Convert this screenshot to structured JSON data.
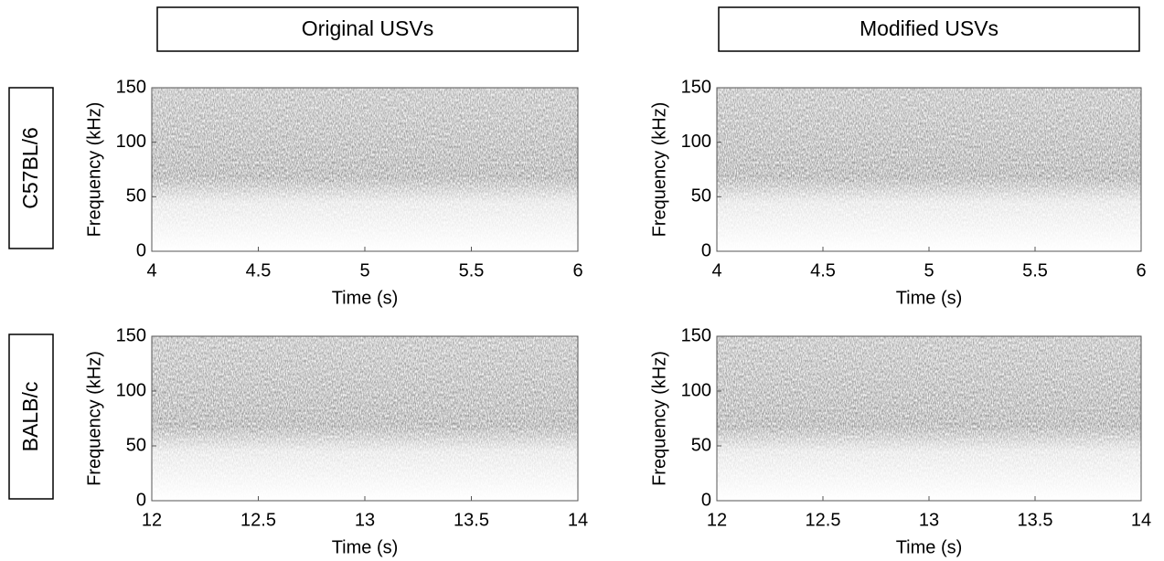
{
  "panel_labels": {
    "columns": [
      "Original USVs",
      "Modified USVs"
    ],
    "rows": [
      "C57BL/6",
      "BALB/c"
    ]
  },
  "chart_data": [
    {
      "type": "spectrogram",
      "xlabel": "Time (s)",
      "ylabel": "Frequency (kHz)",
      "xlim": [
        4,
        6
      ],
      "xticks": [
        4,
        4.5,
        5,
        5.5,
        6
      ],
      "ylim": [
        0,
        150
      ],
      "yticks": [
        0,
        50,
        100,
        150
      ]
    },
    {
      "type": "spectrogram",
      "xlabel": "Time (s)",
      "ylabel": "Frequency (kHz)",
      "xlim": [
        4,
        6
      ],
      "xticks": [
        4,
        4.5,
        5,
        5.5,
        6
      ],
      "ylim": [
        0,
        150
      ],
      "yticks": [
        0,
        50,
        100,
        150
      ]
    },
    {
      "type": "spectrogram",
      "xlabel": "Time (s)",
      "ylabel": "Frequency (kHz)",
      "xlim": [
        12,
        14
      ],
      "xticks": [
        12,
        12.5,
        13,
        13.5,
        14
      ],
      "ylim": [
        0,
        150
      ],
      "yticks": [
        0,
        50,
        100,
        150
      ]
    },
    {
      "type": "spectrogram",
      "xlabel": "Time (s)",
      "ylabel": "Frequency (kHz)",
      "xlim": [
        12,
        14
      ],
      "xticks": [
        12,
        12.5,
        13,
        13.5,
        14
      ],
      "ylim": [
        0,
        150
      ],
      "yticks": [
        0,
        50,
        100,
        150
      ]
    }
  ]
}
